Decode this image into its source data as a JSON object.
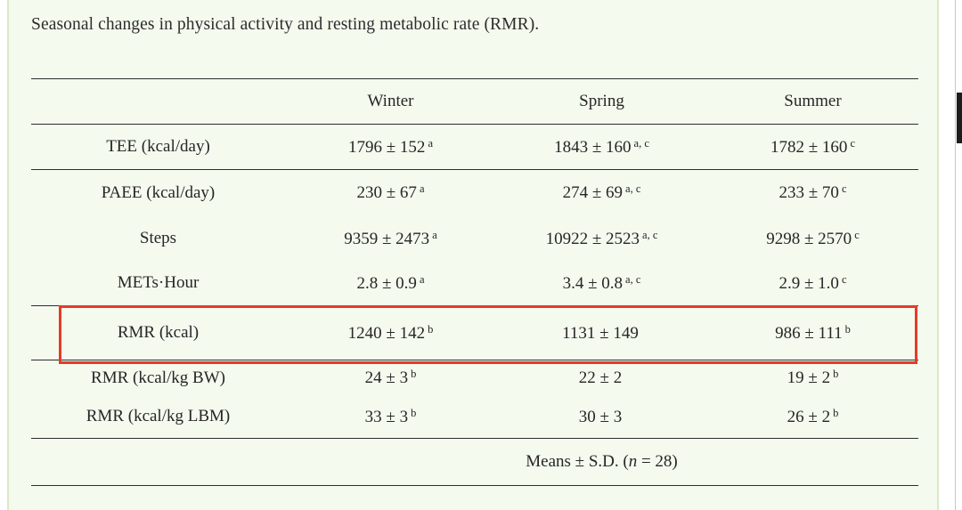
{
  "caption": "Seasonal changes in physical activity and resting metabolic rate (RMR).",
  "table": {
    "headers": {
      "label": "",
      "winter": "Winter",
      "spring": "Spring",
      "summer": "Summer"
    },
    "rows": [
      {
        "label": "TEE (kcal/day)",
        "cells": [
          {
            "value": "1796 ± 152",
            "sup": "a"
          },
          {
            "value": "1843 ± 160",
            "sup": "a, c"
          },
          {
            "value": "1782 ± 160",
            "sup": "c"
          }
        ]
      },
      {
        "label": "PAEE (kcal/day)",
        "cells": [
          {
            "value": "230 ± 67",
            "sup": "a"
          },
          {
            "value": "274 ± 69",
            "sup": "a, c"
          },
          {
            "value": "233 ± 70",
            "sup": "c"
          }
        ]
      },
      {
        "label": "Steps",
        "cells": [
          {
            "value": "9359 ± 2473",
            "sup": "a"
          },
          {
            "value": "10922 ± 2523",
            "sup": "a, c"
          },
          {
            "value": "9298 ± 2570",
            "sup": "c"
          }
        ]
      },
      {
        "label": "METs·Hour",
        "cells": [
          {
            "value": "2.8 ± 0.9",
            "sup": "a"
          },
          {
            "value": "3.4 ± 0.8",
            "sup": "a, c"
          },
          {
            "value": "2.9 ± 1.0",
            "sup": "c"
          }
        ]
      },
      {
        "label": "RMR (kcal)",
        "cells": [
          {
            "value": "1240 ± 142",
            "sup": "b"
          },
          {
            "value": "1131 ± 149",
            "sup": ""
          },
          {
            "value": "986 ± 111",
            "sup": "b"
          }
        ]
      },
      {
        "label": "RMR (kcal/kg BW)",
        "cells": [
          {
            "value": "24 ± 3",
            "sup": "b"
          },
          {
            "value": "22 ± 2",
            "sup": ""
          },
          {
            "value": "19 ± 2",
            "sup": "b"
          }
        ]
      },
      {
        "label": "RMR (kcal/kg LBM)",
        "cells": [
          {
            "value": "33 ± 3",
            "sup": "b"
          },
          {
            "value": "30 ± 3",
            "sup": ""
          },
          {
            "value": "26 ± 2",
            "sup": "b"
          }
        ]
      }
    ],
    "footer": {
      "prefix": "Means ± S.D. (",
      "italic_n": "n",
      "suffix": " = 28)"
    }
  },
  "highlight": {
    "target_row": "RMR (kcal)",
    "color": "#e63b23"
  },
  "colors": {
    "panel_background": "#f4faee",
    "panel_border": "#d9e8c6",
    "table_rule": "#2d2d2d",
    "text": "#262626",
    "scrollbar_thumb": "#1d1d1f"
  }
}
